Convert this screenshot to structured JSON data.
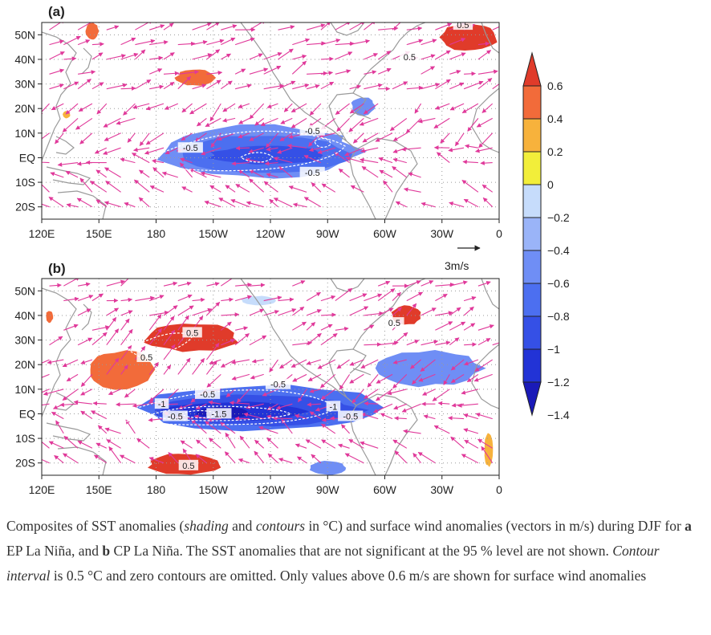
{
  "colors": {
    "land": "#ffffff",
    "coast": "#9a9a9a",
    "grid": "#9a9a9a",
    "wind": "#e0399a",
    "palette": [
      "#1a1ab8",
      "#2233d6",
      "#3550e6",
      "#4c6ff0",
      "#6f8ef5",
      "#9ab4f8",
      "#c6dcfb",
      "#ffffff",
      "#f2ee3a",
      "#f7b23c",
      "#f26b3a",
      "#e03b2a"
    ]
  },
  "chart_data": [
    {
      "type": "heatmap",
      "panel_label": "(a)",
      "description": "SST anomaly shading and contours (°C) with surface wind anomaly vectors (m/s), EP La Niña, DJF",
      "x_ticks": [
        "120E",
        "150E",
        "180",
        "150W",
        "120W",
        "90W",
        "60W",
        "30W",
        "0"
      ],
      "y_ticks": [
        "50N",
        "40N",
        "30N",
        "20N",
        "10N",
        "EQ",
        "10S",
        "20S"
      ],
      "xlim_lon_east": [
        120,
        360
      ],
      "ylim_lat": [
        -25,
        55
      ],
      "grid": true,
      "contour_labels": [
        {
          "text": "-0.5",
          "lon": 198,
          "lat": 4
        },
        {
          "text": "-0.5",
          "lon": 262,
          "lat": 11
        },
        {
          "text": "-0.5",
          "lon": 262,
          "lat": -6
        },
        {
          "text": "0.5",
          "lon": 341,
          "lat": 54
        },
        {
          "text": "0.5",
          "lon": 313,
          "lat": 41
        }
      ],
      "sst_regions": [
        {
          "value": -0.4,
          "lon_range": [
            176,
            290
          ],
          "lat_range": [
            -9,
            14
          ]
        },
        {
          "value": -0.6,
          "lon_range": [
            186,
            286
          ],
          "lat_range": [
            -7,
            10
          ]
        },
        {
          "value": -0.8,
          "lon_range": [
            205,
            272
          ],
          "lat_range": [
            -3,
            5
          ]
        },
        {
          "value": -0.4,
          "lon_range": [
            282,
            295
          ],
          "lat_range": [
            17,
            25
          ]
        },
        {
          "value": 0.4,
          "lon_range": [
            190,
            212
          ],
          "lat_range": [
            29,
            36
          ]
        },
        {
          "value": 0.6,
          "lon_range": [
            329,
            360
          ],
          "lat_range": [
            43,
            55
          ]
        },
        {
          "value": 0.4,
          "lon_range": [
            143,
            150
          ],
          "lat_range": [
            48,
            55
          ]
        },
        {
          "value": 0.2,
          "lon_range": [
            131,
            135
          ],
          "lat_range": [
            16,
            19
          ]
        }
      ]
    },
    {
      "type": "heatmap",
      "panel_label": "(b)",
      "description": "SST anomaly shading and contours (°C) with surface wind anomaly vectors (m/s), CP La Niña, DJF",
      "x_ticks": [
        "120E",
        "150E",
        "180",
        "150W",
        "120W",
        "90W",
        "60W",
        "30W",
        "0"
      ],
      "y_ticks": [
        "50N",
        "40N",
        "30N",
        "20N",
        "10N",
        "EQ",
        "10S",
        "20S"
      ],
      "xlim_lon_east": [
        120,
        360
      ],
      "ylim_lat": [
        -25,
        55
      ],
      "grid": true,
      "contour_labels": [
        {
          "text": "0.5",
          "lon": 199,
          "lat": 33
        },
        {
          "text": "0.5",
          "lon": 175,
          "lat": 23
        },
        {
          "text": "0.5",
          "lon": 197,
          "lat": -21
        },
        {
          "text": "0.5",
          "lon": 305,
          "lat": 37
        },
        {
          "text": "-1",
          "lon": 183,
          "lat": 4
        },
        {
          "text": "-0.5",
          "lon": 207,
          "lat": 8
        },
        {
          "text": "-0.5",
          "lon": 244,
          "lat": 12
        },
        {
          "text": "-1.5",
          "lon": 213,
          "lat": 0
        },
        {
          "text": "-1",
          "lon": 273,
          "lat": 3
        },
        {
          "text": "-0.5",
          "lon": 282,
          "lat": -1
        },
        {
          "text": "-0.5",
          "lon": 190,
          "lat": -1
        }
      ],
      "sst_regions": [
        {
          "value": -0.6,
          "lon_range": [
            165,
            308
          ],
          "lat_range": [
            -7,
            12
          ]
        },
        {
          "value": -0.8,
          "lon_range": [
            175,
            290
          ],
          "lat_range": [
            -5,
            8
          ]
        },
        {
          "value": -1.0,
          "lon_range": [
            180,
            262
          ],
          "lat_range": [
            -3,
            5
          ]
        },
        {
          "value": -1.2,
          "lon_range": [
            200,
            230
          ],
          "lat_range": [
            -2,
            3
          ]
        },
        {
          "value": -0.4,
          "lon_range": [
            292,
            352
          ],
          "lat_range": [
            11,
            26
          ]
        },
        {
          "value": -0.4,
          "lon_range": [
            260,
            280
          ],
          "lat_range": [
            -25,
            -19
          ]
        },
        {
          "value": -0.2,
          "lon_range": [
            224,
            244
          ],
          "lat_range": [
            44,
            48
          ]
        },
        {
          "value": 0.6,
          "lon_range": [
            172,
            225
          ],
          "lat_range": [
            25,
            37
          ]
        },
        {
          "value": 0.4,
          "lon_range": [
            143,
            180
          ],
          "lat_range": [
            10,
            26
          ]
        },
        {
          "value": 0.6,
          "lon_range": [
            175,
            215
          ],
          "lat_range": [
            -25,
            -16
          ]
        },
        {
          "value": 0.6,
          "lon_range": [
            303,
            320
          ],
          "lat_range": [
            36,
            44
          ]
        },
        {
          "value": 0.4,
          "lon_range": [
            122,
            126
          ],
          "lat_range": [
            37,
            42
          ]
        },
        {
          "value": 0.2,
          "lon_range": [
            352,
            357
          ],
          "lat_range": [
            -22,
            -8
          ]
        }
      ]
    }
  ],
  "colorbar": {
    "labels": [
      "0.6",
      "0.4",
      "0.2",
      "0",
      "−0.2",
      "−0.4",
      "−0.6",
      "−0.8",
      "−1",
      "−1.2",
      "−1.4"
    ],
    "bins": [
      "#e03b2a",
      "#f26b3a",
      "#f7b23c",
      "#f2ee3a",
      "#c6dcfb",
      "#9ab4f8",
      "#6f8ef5",
      "#4c6ff0",
      "#3550e6",
      "#2233d6",
      "#1a1ab8"
    ]
  },
  "reference_vector": {
    "label": "3m/s",
    "value": 3
  },
  "caption": {
    "p1": "Composites of SST anomalies (",
    "i1": "shading",
    "p2": " and ",
    "i2": "contours",
    "p3": " in °C) and surface wind anomalies (vectors in m/s) during DJF for ",
    "b1": "a",
    "p4": " EP La Niña, and ",
    "b2": "b",
    "p5": " CP La Niña. The SST anomalies that are not significant at the 95 % level are not shown. ",
    "i3": "Contour interval",
    "p6": " is 0.5 °C and zero contours are omitted. Only values above 0.6 m/s are shown for surface wind anomalies"
  }
}
